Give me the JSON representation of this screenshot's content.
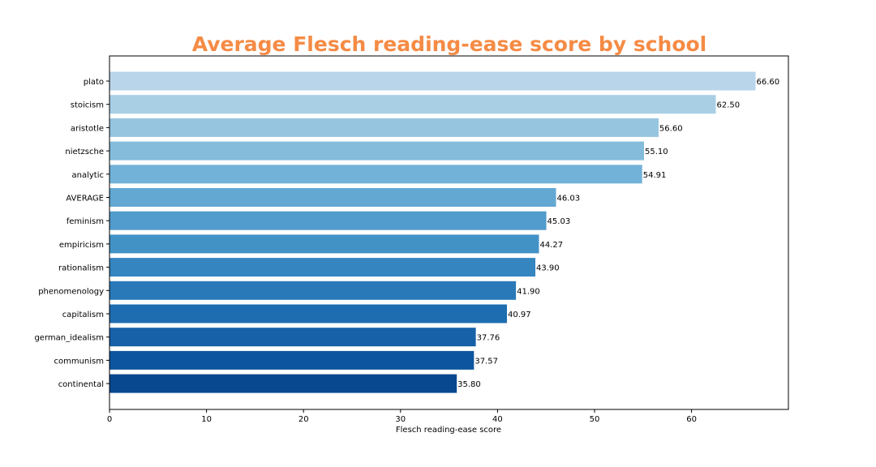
{
  "chart_data": {
    "type": "bar",
    "orientation": "horizontal",
    "title": "Average Flesch reading-ease score by school",
    "title_color": "#f58b45",
    "xlabel": "Flesch reading-ease score",
    "ylabel": "",
    "xlim": [
      0,
      70
    ],
    "xticks": [
      0,
      10,
      20,
      30,
      40,
      50,
      60
    ],
    "grid": false,
    "legend": "none",
    "categories": [
      "plato",
      "stoicism",
      "aristotle",
      "nietzsche",
      "analytic",
      "AVERAGE",
      "feminism",
      "empiricism",
      "rationalism",
      "phenomenology",
      "capitalism",
      "german_idealism",
      "communism",
      "continental"
    ],
    "values": [
      66.6,
      62.5,
      56.6,
      55.1,
      54.91,
      46.03,
      45.03,
      44.27,
      43.9,
      41.9,
      40.97,
      37.76,
      37.57,
      35.8
    ],
    "value_labels": [
      "66.60",
      "62.50",
      "56.60",
      "55.10",
      "54.91",
      "46.03",
      "45.03",
      "44.27",
      "43.90",
      "41.90",
      "40.97",
      "37.76",
      "37.57",
      "35.80"
    ],
    "colors": [
      "#b8d5ea",
      "#a9cfe5",
      "#96c5df",
      "#85bcdc",
      "#73b2d8",
      "#63a8d3",
      "#519ccc",
      "#4292c6",
      "#3585c0",
      "#2979b9",
      "#1f6db1",
      "#1661a8",
      "#0d559f",
      "#08488e"
    ]
  }
}
